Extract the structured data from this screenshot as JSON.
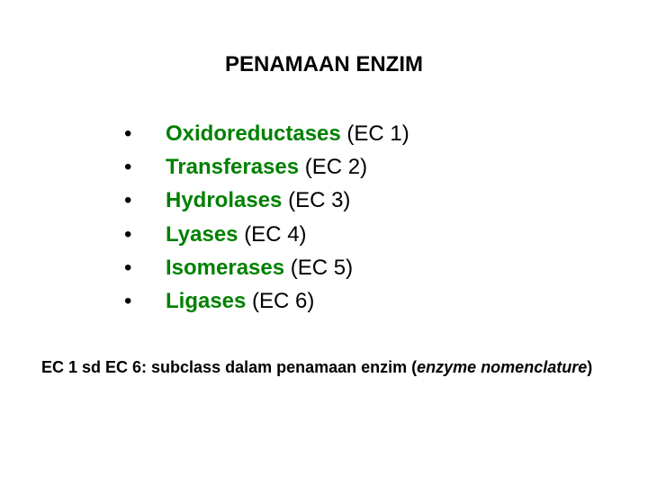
{
  "title": {
    "text": "PENAMAAN ENZIM",
    "fontsize": 24,
    "color": "#000000",
    "weight": "bold"
  },
  "list": {
    "bullet": "•",
    "fontsize": 24,
    "bold_color": "#008000",
    "plain_color": "#000000",
    "bullet_color": "#000000",
    "items": [
      {
        "bold": "Oxidoreductases ",
        "plain": "(EC 1)"
      },
      {
        "bold": "Transferases ",
        "plain": "(EC 2)"
      },
      {
        "bold": "Hydrolases ",
        "plain": "(EC 3)"
      },
      {
        "bold": "Lyases ",
        "plain": "(EC 4)"
      },
      {
        "bold": "Isomerases ",
        "plain": "(EC 5)"
      },
      {
        "bold": "Ligases  ",
        "plain": "(EC 6)"
      }
    ]
  },
  "footer": {
    "prefix": "EC 1 sd EC 6: subclass dalam penamaan enzim (",
    "italic": "enzyme nomenclature",
    "suffix": ")",
    "fontsize": 18,
    "color": "#000000",
    "weight": "bold"
  }
}
